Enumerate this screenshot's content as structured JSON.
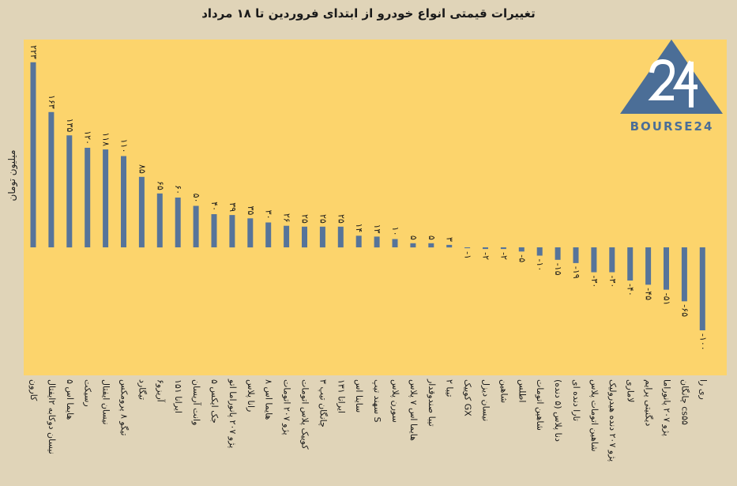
{
  "chart_data": {
    "type": "bar",
    "title": "تغییرات قیمتی انواع خودرو از ابتدای فروردین تا ۱۸ مرداد",
    "ylabel": "میلیون تومان",
    "xlabel": "",
    "ylim": [
      -110,
      230
    ],
    "grid": false,
    "categories": [
      "کارون",
      "نیسان دوکابه ۲ایفتال",
      "هایما اس ۵",
      "رسیکت",
      "نیسان ایفتال",
      "تیگو ۸ پرومکس",
      "تیگارد",
      "آریزو۶",
      "ایرانا ۱۵۱",
      "وانت آریسان",
      "جک ایکس ۵",
      "پژو ۲۰۷ پانوراما اتو",
      "رانا پلاس",
      "هایما اس ۸",
      "پژو ۲۰۷ اتومات",
      "کوییک پلاس اتومات",
      "چانگان تیپ ۳",
      "ایرانا ۱۳۱",
      "ساینا اس",
      "سهند تیپ S",
      "سورن پلاس",
      "هایما اس ۷ پلاس",
      "تیبا صندوقدار",
      "تیبا ۲",
      "کوییک GX",
      "نیسان دیزل",
      "شاهین",
      "اطلس",
      "شاهین اتومات",
      "دنا پلاس (۵ دنده)",
      "تارا دنده ای",
      "شاهین اتومات پلاس",
      "پژو ۲۰۷ دنده هیدرولیک",
      "لاماری",
      "دیگنیتی پرایم",
      "پژو ۲۰۷ پانوراما",
      "چانگان cs۵۵",
      "ری را"
    ],
    "values": [
      223,
      163,
      135,
      120,
      118,
      110,
      85,
      65,
      60,
      50,
      40,
      39,
      35,
      30,
      26,
      25,
      25,
      25,
      14,
      13,
      10,
      5,
      5,
      3,
      -1,
      -2,
      -2,
      -5,
      -10,
      -15,
      -19,
      -30,
      -30,
      -40,
      -45,
      -51,
      -65,
      -100
    ],
    "data_labels": [
      "۲۲۳",
      "۱۶۳",
      "۱۳۵",
      "۱۲۰",
      "۱۱۸",
      "۱۱۰",
      "۸۵",
      "۶۵",
      "۶۰",
      "۵۰",
      "۴۰",
      "۳۹",
      "۳۵",
      "۳۰",
      "۲۶",
      "۲۵",
      "۲۵",
      "۲۵",
      "۱۴",
      "۱۳",
      "۱۰",
      "۵",
      "۵",
      "۳",
      "-۱",
      "-۲",
      "-۲",
      "-۵",
      "-۱۰",
      "-۱۵",
      "-۱۹",
      "-۳۰",
      "-۳۰",
      "-۴۰",
      "-۴۵",
      "-۵۱",
      "-۶۵",
      "-۱۰۰"
    ]
  },
  "logo": {
    "text": "BOURSE24",
    "colors": {
      "blue": "#4b6e97",
      "white": "#ffffff"
    }
  },
  "colors": {
    "bar": "#56749a",
    "plot_background": "#fcd46c",
    "page_background": "#e0d4b8"
  }
}
